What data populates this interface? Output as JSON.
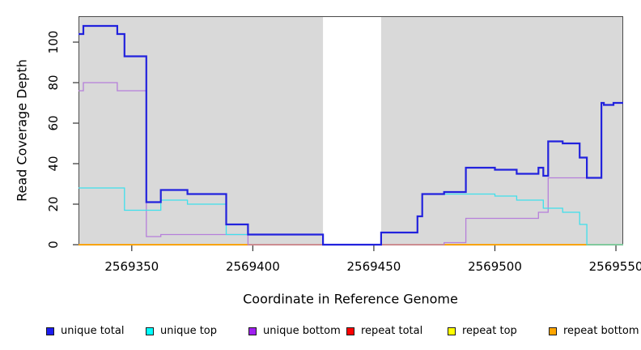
{
  "chart_data": {
    "type": "line",
    "step": true,
    "title": "",
    "xlabel": "Coordinate in Reference Genome",
    "ylabel": "Read Coverage Depth",
    "x_range": [
      2569328,
      2569553
    ],
    "y_range": [
      0,
      112
    ],
    "x_ticks": [
      2569350,
      2569400,
      2569450,
      2569500,
      2569550
    ],
    "y_ticks": [
      0,
      20,
      40,
      60,
      80,
      100
    ],
    "grid": false,
    "plot_bg_color": "#d9d9d9",
    "box_color": "#4a4a4a",
    "tick_color": "#333333",
    "no_data_region": {
      "x_start": 2569429,
      "x_end": 2569453,
      "color": "#ffffff"
    },
    "legend_position": "bottom",
    "series": [
      {
        "name": "unique total",
        "color": "#2222dd",
        "width": 2.2,
        "z": 6,
        "points": [
          [
            2569328,
            104
          ],
          [
            2569330,
            108
          ],
          [
            2569344,
            104
          ],
          [
            2569347,
            93
          ],
          [
            2569356,
            21
          ],
          [
            2569362,
            27
          ],
          [
            2569373,
            25
          ],
          [
            2569389,
            10
          ],
          [
            2569398,
            5
          ],
          [
            2569429,
            0
          ],
          [
            2569453,
            6
          ],
          [
            2569468,
            14
          ],
          [
            2569470,
            25
          ],
          [
            2569479,
            26
          ],
          [
            2569488,
            38
          ],
          [
            2569500,
            37
          ],
          [
            2569509,
            35
          ],
          [
            2569518,
            38
          ],
          [
            2569520,
            34
          ],
          [
            2569522,
            51
          ],
          [
            2569528,
            50
          ],
          [
            2569535,
            43
          ],
          [
            2569538,
            33
          ],
          [
            2569544,
            70
          ],
          [
            2569545,
            69
          ],
          [
            2569549,
            70
          ]
        ]
      },
      {
        "name": "unique top",
        "color": "#3fe0ec",
        "width": 1.3,
        "z": 5,
        "points": [
          [
            2569328,
            28
          ],
          [
            2569347,
            17
          ],
          [
            2569362,
            22
          ],
          [
            2569373,
            20
          ],
          [
            2569389,
            5
          ],
          [
            2569429,
            0
          ],
          [
            2569453,
            6
          ],
          [
            2569468,
            14
          ],
          [
            2569470,
            25
          ],
          [
            2569500,
            24
          ],
          [
            2569509,
            22
          ],
          [
            2569520,
            18
          ],
          [
            2569528,
            16
          ],
          [
            2569535,
            10
          ],
          [
            2569538,
            0
          ]
        ]
      },
      {
        "name": "unique bottom",
        "color": "#b67fda",
        "width": 1.3,
        "z": 4,
        "points": [
          [
            2569328,
            76
          ],
          [
            2569330,
            80
          ],
          [
            2569344,
            76
          ],
          [
            2569356,
            4
          ],
          [
            2569362,
            5
          ],
          [
            2569398,
            0
          ],
          [
            2569479,
            1
          ],
          [
            2569488,
            13
          ],
          [
            2569518,
            16
          ],
          [
            2569522,
            33
          ],
          [
            2569544,
            70
          ],
          [
            2569545,
            69
          ],
          [
            2569549,
            70
          ]
        ]
      },
      {
        "name": "repeat total",
        "color": "#e01111",
        "width": 1.2,
        "z": 1,
        "points": [
          [
            2569328,
            0
          ]
        ]
      },
      {
        "name": "repeat top",
        "color": "#ffff00",
        "width": 1.2,
        "z": 2,
        "points": [
          [
            2569328,
            0
          ]
        ]
      },
      {
        "name": "repeat bottom",
        "color": "#ffa500",
        "width": 1.8,
        "z": 3,
        "points": [
          [
            2569328,
            0
          ]
        ]
      }
    ],
    "legend": [
      {
        "label": "unique total",
        "color": "#1c1cf0"
      },
      {
        "label": "unique top",
        "color": "#00ffff"
      },
      {
        "label": "unique bottom",
        "color": "#a020f0"
      },
      {
        "label": "repeat total",
        "color": "#ff0000"
      },
      {
        "label": "repeat top",
        "color": "#ffff00"
      },
      {
        "label": "repeat bottom",
        "color": "#ffa500"
      }
    ]
  }
}
